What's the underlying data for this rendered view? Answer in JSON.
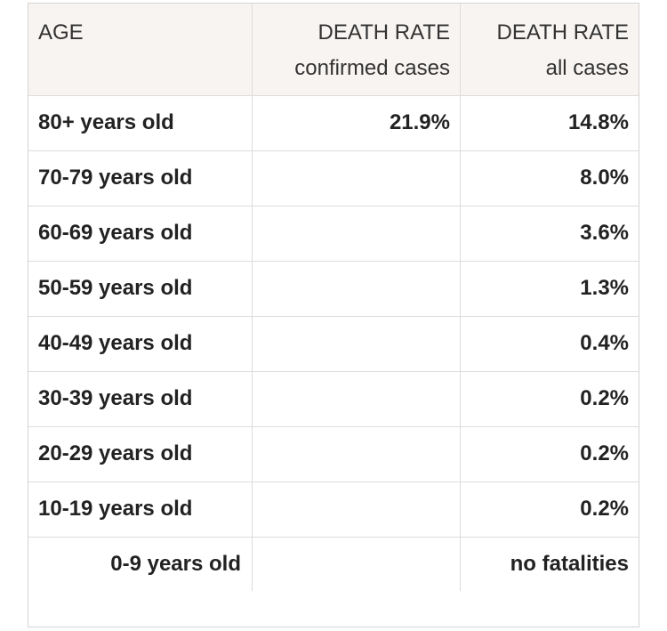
{
  "table": {
    "header": {
      "age": "AGE",
      "confirmed": [
        "DEATH RATE",
        "confirmed cases"
      ],
      "all": [
        "DEATH RATE",
        "all cases"
      ]
    },
    "rows": [
      [
        "80+ years old",
        "21.9%",
        "14.8%"
      ],
      [
        "70-79 years old",
        null,
        "8.0%"
      ],
      [
        "60-69 years old",
        null,
        "3.6%"
      ],
      [
        "50-59 years old",
        null,
        "1.3%"
      ],
      [
        "40-49 years old",
        null,
        "0.4%"
      ],
      [
        "30-39 years old",
        null,
        "0.2%"
      ],
      [
        "20-29 years old",
        null,
        "0.2%"
      ],
      [
        "10-19 years old",
        null,
        "0.2%"
      ],
      [
        "0-9 years old",
        null,
        "no fatalities"
      ]
    ]
  }
}
